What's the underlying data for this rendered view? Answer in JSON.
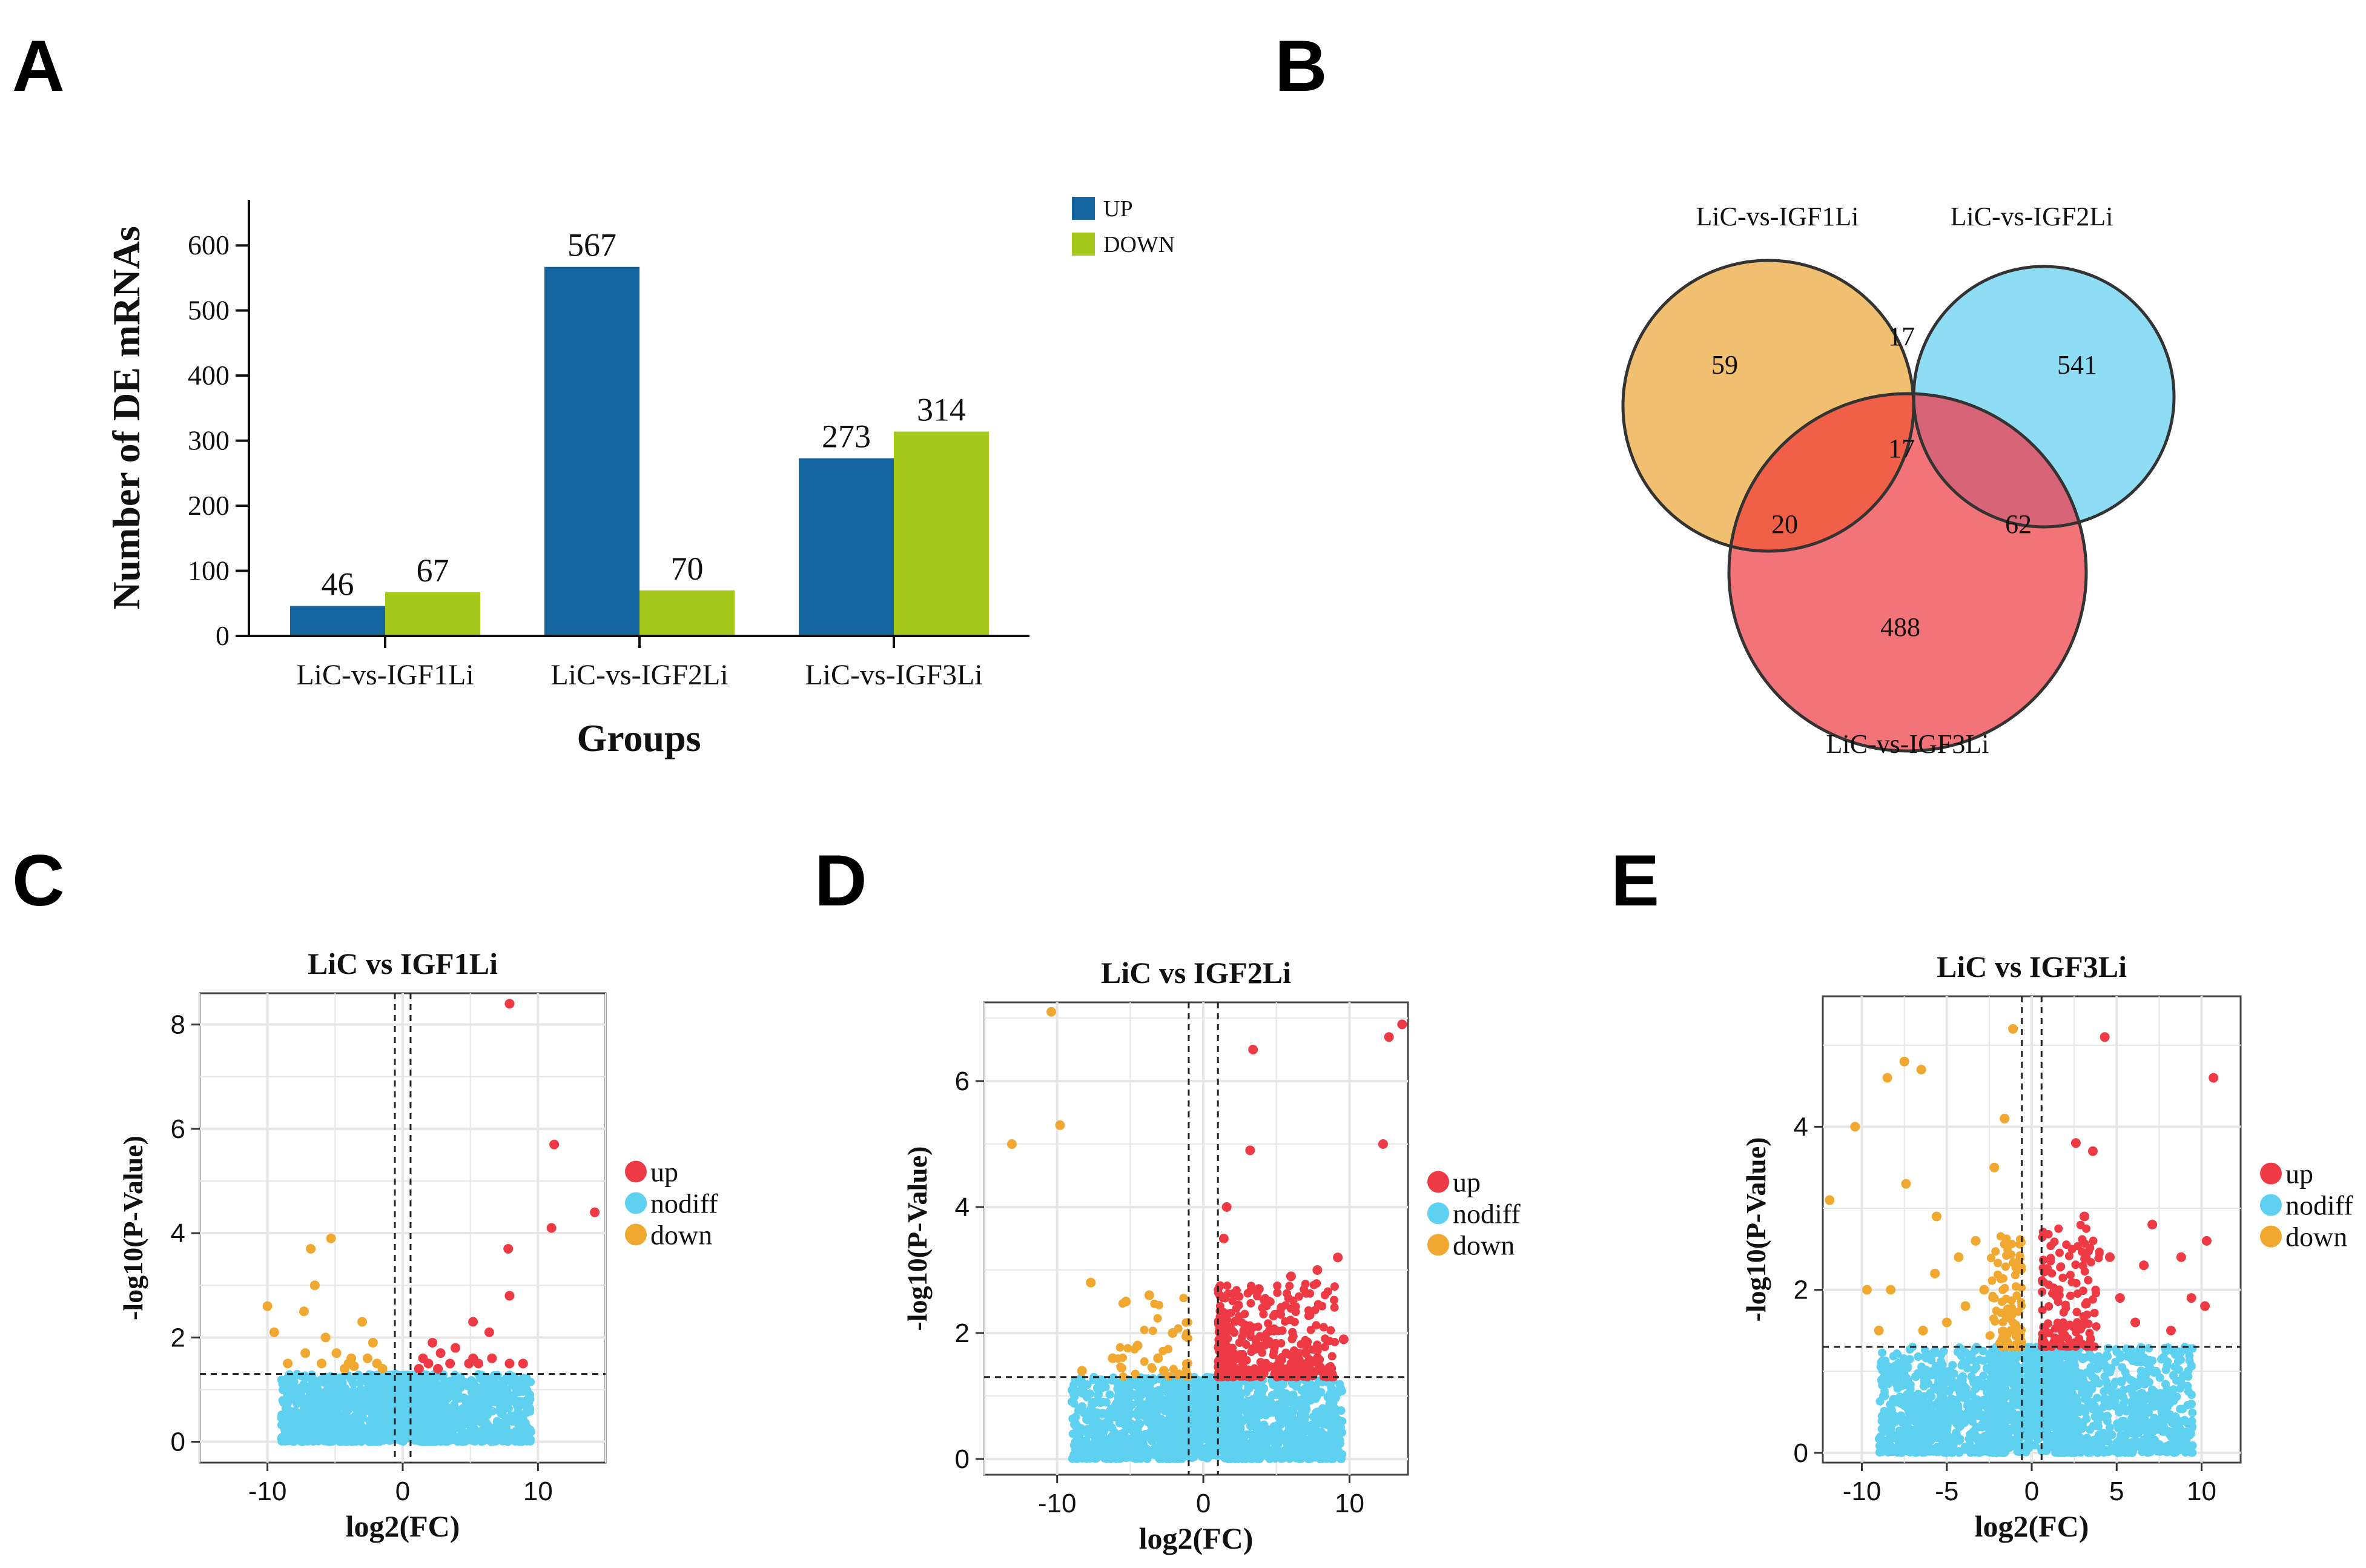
{
  "panel_labels": {
    "a": "A",
    "b": "B",
    "c": "C",
    "d": "D",
    "e": "E"
  },
  "chart_data": [
    {
      "panel": "A",
      "type": "bar",
      "title": "",
      "xlabel": "Groups",
      "ylabel": "Number of DE mRNAs",
      "categories": [
        "LiC-vs-IGF1Li",
        "LiC-vs-IGF2Li",
        "LiC-vs-IGF3Li"
      ],
      "series": [
        {
          "name": "UP",
          "color": "#1565a0",
          "values": [
            46,
            567,
            273
          ]
        },
        {
          "name": "DOWN",
          "color": "#a5c91a",
          "values": [
            67,
            70,
            314
          ]
        }
      ],
      "ylim": [
        0,
        670
      ],
      "yticks": [
        0,
        100,
        200,
        300,
        400,
        500,
        600
      ],
      "legend": "top-right"
    },
    {
      "panel": "B",
      "type": "venn",
      "sets": [
        {
          "name": "LiC-vs-IGF1Li",
          "color": "#f0c070"
        },
        {
          "name": "LiC-vs-IGF2Li",
          "color": "#8fdcf5"
        },
        {
          "name": "LiC-vs-IGF3Li",
          "color": "#f27478"
        }
      ],
      "regions": {
        "only1": 59,
        "only2": 541,
        "only3": 488,
        "s1_s2": 17,
        "s1_s2_s3": 17,
        "s1_s3": 20,
        "s2_s3": 62
      },
      "region_colors": {
        "s1_s2": "#8fd0c8",
        "s1_s3": "#f06048",
        "s2_s3": "#d86478",
        "s1_s2_s3": "#d46868"
      }
    },
    {
      "panel": "C",
      "type": "scatter",
      "title": "LiC vs IGF1Li",
      "xlabel": "log2(FC)",
      "ylabel": "-log10(P-Value)",
      "xlim": [
        -15,
        15
      ],
      "ylim": [
        -0.4,
        8.6
      ],
      "xticks": [
        -10,
        0,
        10
      ],
      "yticks": [
        0,
        2,
        4,
        6,
        8
      ],
      "threshold_y": 1.3,
      "threshold_x": [
        -0.58,
        0.58
      ],
      "legend": [
        "up",
        "nodiff",
        "down"
      ],
      "legend_colors": [
        "#ee3a44",
        "#5ed0f0",
        "#f0a830"
      ],
      "points_up": [
        [
          7.9,
          8.4
        ],
        [
          11.2,
          5.7
        ],
        [
          14.2,
          4.4
        ],
        [
          11.0,
          4.1
        ],
        [
          7.8,
          3.7
        ],
        [
          7.9,
          2.8
        ],
        [
          6.4,
          2.1
        ],
        [
          6.6,
          1.6
        ],
        [
          5.2,
          2.3
        ],
        [
          5.2,
          1.6
        ],
        [
          3.9,
          1.8
        ],
        [
          3.5,
          1.5
        ],
        [
          2.2,
          1.9
        ],
        [
          2.8,
          1.7
        ],
        [
          1.5,
          1.6
        ],
        [
          1.9,
          1.5
        ],
        [
          4.9,
          1.5
        ],
        [
          5.6,
          1.5
        ],
        [
          7.9,
          1.5
        ],
        [
          8.9,
          1.5
        ],
        [
          1.2,
          1.4
        ],
        [
          2.6,
          1.4
        ]
      ],
      "points_down": [
        [
          -10.0,
          2.6
        ],
        [
          -9.5,
          2.1
        ],
        [
          -6.8,
          3.7
        ],
        [
          -5.3,
          3.9
        ],
        [
          -6.5,
          3.0
        ],
        [
          -7.3,
          2.5
        ],
        [
          -3.0,
          2.3
        ],
        [
          -5.7,
          2.0
        ],
        [
          -2.2,
          1.9
        ],
        [
          -7.2,
          1.7
        ],
        [
          -4.9,
          1.7
        ],
        [
          -3.8,
          1.6
        ],
        [
          -8.5,
          1.5
        ],
        [
          -6.0,
          1.5
        ],
        [
          -1.9,
          1.5
        ],
        [
          -1.5,
          1.4
        ],
        [
          -4.3,
          1.4
        ],
        [
          -4.0,
          1.5
        ],
        [
          -3.6,
          1.45
        ],
        [
          -2.6,
          1.6
        ]
      ],
      "nodiff_seed": 1
    },
    {
      "panel": "D",
      "type": "scatter",
      "title": "LiC vs IGF2Li",
      "xlabel": "log2(FC)",
      "ylabel": "-log10(P-Value)",
      "xlim": [
        -15,
        14
      ],
      "ylim": [
        -0.25,
        7.25
      ],
      "xticks": [
        -10,
        0,
        10
      ],
      "yticks": [
        0,
        2,
        4,
        6
      ],
      "threshold_y": 1.3,
      "threshold_x": [
        -1,
        1
      ],
      "legend": [
        "up",
        "nodiff",
        "down"
      ],
      "legend_colors": [
        "#ee3a44",
        "#5ed0f0",
        "#f0a830"
      ],
      "points_up": [
        [
          13.6,
          6.9
        ],
        [
          12.7,
          6.7
        ],
        [
          3.4,
          6.5
        ],
        [
          3.2,
          4.9
        ],
        [
          12.3,
          5.0
        ],
        [
          1.6,
          4.0
        ],
        [
          9.6,
          1.9
        ],
        [
          9.2,
          3.2
        ],
        [
          7.8,
          3.0
        ],
        [
          6.0,
          2.9
        ],
        [
          4.5,
          2.5
        ],
        [
          3.8,
          2.7
        ],
        [
          1.4,
          3.5
        ]
      ],
      "points_down": [
        [
          -10.4,
          7.1
        ],
        [
          -13.1,
          5.0
        ],
        [
          -9.8,
          5.3
        ],
        [
          -7.7,
          2.8
        ],
        [
          -5.3,
          2.5
        ],
        [
          -3.7,
          2.6
        ],
        [
          -2.1,
          2.0
        ],
        [
          -6.2,
          1.6
        ],
        [
          -4.5,
          1.8
        ],
        [
          -3.1,
          1.6
        ],
        [
          -8.3,
          1.4
        ],
        [
          -2.7,
          1.4
        ]
      ],
      "up_cloud": {
        "xmin": 1.0,
        "xmax": 9.0,
        "count": 420
      },
      "down_cloud": {
        "xmin": -6.0,
        "xmax": -1.0,
        "count": 40
      },
      "nodiff_seed": 2
    },
    {
      "panel": "E",
      "type": "scatter",
      "title": "LiC vs IGF3Li",
      "xlabel": "log2(FC)",
      "ylabel": "-log10(P-Value)",
      "xlim": [
        -12.3,
        12.3
      ],
      "ylim": [
        -0.12,
        5.6
      ],
      "xticks": [
        -10,
        -5,
        0,
        5,
        10
      ],
      "yticks": [
        0,
        2,
        4
      ],
      "threshold_y": 1.3,
      "threshold_x": [
        -0.58,
        0.58
      ],
      "legend": [
        "up",
        "nodiff",
        "down"
      ],
      "legend_colors": [
        "#ee3a44",
        "#5ed0f0",
        "#f0a830"
      ],
      "points_up": [
        [
          10.7,
          4.6
        ],
        [
          4.3,
          5.1
        ],
        [
          3.6,
          3.7
        ],
        [
          2.6,
          3.8
        ],
        [
          10.3,
          2.6
        ],
        [
          8.8,
          2.4
        ],
        [
          7.1,
          2.8
        ],
        [
          6.6,
          2.3
        ],
        [
          9.4,
          1.9
        ],
        [
          10.2,
          1.8
        ],
        [
          5.2,
          1.9
        ],
        [
          4.6,
          2.4
        ],
        [
          3.1,
          2.9
        ],
        [
          8.2,
          1.5
        ],
        [
          6.1,
          1.6
        ]
      ],
      "points_down": [
        [
          -11.9,
          3.1
        ],
        [
          -10.4,
          4.0
        ],
        [
          -8.5,
          4.6
        ],
        [
          -7.5,
          4.8
        ],
        [
          -6.5,
          4.7
        ],
        [
          -1.1,
          5.2
        ],
        [
          -7.4,
          3.3
        ],
        [
          -1.6,
          4.1
        ],
        [
          -9.7,
          2.0
        ],
        [
          -8.3,
          2.0
        ],
        [
          -5.6,
          2.9
        ],
        [
          -5.7,
          2.2
        ],
        [
          -4.3,
          2.4
        ],
        [
          -3.9,
          1.8
        ],
        [
          -3.3,
          2.6
        ],
        [
          -2.2,
          3.5
        ],
        [
          -9.0,
          1.5
        ],
        [
          -6.4,
          1.5
        ],
        [
          -5.0,
          1.6
        ],
        [
          -2.8,
          2.0
        ]
      ],
      "up_cloud": {
        "xmin": 0.6,
        "xmax": 4.0,
        "count": 150
      },
      "down_cloud": {
        "xmin": -2.5,
        "xmax": -0.6,
        "count": 110
      },
      "nodiff_seed": 3
    }
  ]
}
